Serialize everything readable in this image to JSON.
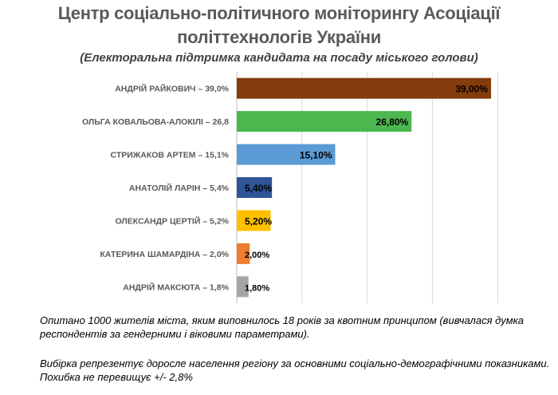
{
  "header": {
    "title_line1": "Центр соціально-політичного моніторингу Асоціації",
    "title_line2": "політтехнологів України",
    "subtitle": "(Електоральна підтримка кандидата на посаду міського голови)"
  },
  "chart_data": {
    "type": "bar",
    "orientation": "horizontal",
    "categories": [
      "АНДРІЙ РАЙКОВИЧ – 39,0%",
      "ОЛЬГА КОВАЛЬОВА-АЛОКІЛІ – 26,8",
      "СТРИЖАКОВ АРТЕМ – 15,1%",
      "АНАТОЛІЙ ЛАРІН – 5,4%",
      "ОЛЕКСАНДР ЦЕРТІЙ – 5,2%",
      "КАТЕРИНА ШАМАРДІНА – 2,0%",
      "АНДРІЙ МАКСЮТА – 1,8%"
    ],
    "values": [
      39.0,
      26.8,
      15.1,
      5.4,
      5.2,
      2.0,
      1.8
    ],
    "data_labels": [
      "39,00%",
      "26,80%",
      "15,10%",
      "5,40%",
      "5,20%",
      "2,00%",
      "1,80%"
    ],
    "colors": [
      "#843c0c",
      "#4cb74f",
      "#5b9bd5",
      "#2f5597",
      "#ffc000",
      "#ed7d31",
      "#a5a5a5"
    ],
    "xlim": [
      0,
      50
    ],
    "grid": true
  },
  "notes": {
    "line1": "Опитано 1000 жителів міста, яким виповнилось 18 років за квотним принципом (вивчалася думка респондентів за гендерними і віковими параметрами).",
    "line2": "Вибірка репрезентує доросле населення регіону за основними соціально-демографічними показниками. Похибка не перевищує +/- 2,8%"
  }
}
